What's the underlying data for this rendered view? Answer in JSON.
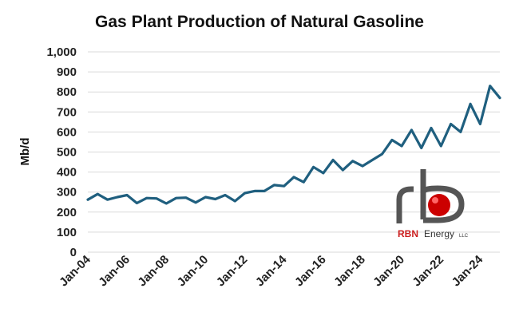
{
  "chart_data": {
    "type": "line",
    "title": "Gas Plant Production of Natural Gasoline",
    "xlabel": "",
    "ylabel": "Mb/d",
    "ylim": [
      0,
      1000
    ],
    "yticks": [
      "0",
      "100",
      "200",
      "300",
      "400",
      "500",
      "600",
      "700",
      "800",
      "900",
      "1,000"
    ],
    "xticks": [
      "Jan-04",
      "Jan-06",
      "Jan-08",
      "Jan-10",
      "Jan-12",
      "Jan-14",
      "Jan-16",
      "Jan-18",
      "Jan-20",
      "Jan-22",
      "Jan-24"
    ],
    "grid": "horizontal",
    "color": "#1f5f7f",
    "x": [
      "Jan-04",
      "Jul-04",
      "Jan-05",
      "Jul-05",
      "Jan-06",
      "Jul-06",
      "Jan-07",
      "Jul-07",
      "Jan-08",
      "Jul-08",
      "Jan-09",
      "Jul-09",
      "Jan-10",
      "Jul-10",
      "Jan-11",
      "Jul-11",
      "Jan-12",
      "Jul-12",
      "Jan-13",
      "Jul-13",
      "Jan-14",
      "Jul-14",
      "Jan-15",
      "Jul-15",
      "Jan-16",
      "Jul-16",
      "Jan-17",
      "Jul-17",
      "Jan-18",
      "Jul-18",
      "Jan-19",
      "Jul-19",
      "Jan-20",
      "Jul-20",
      "Jan-21",
      "Jul-21",
      "Jan-22",
      "Jul-22",
      "Jan-23",
      "Jul-23",
      "Jan-24",
      "Jul-24",
      "Jan-25"
    ],
    "y": [
      262,
      290,
      262,
      275,
      285,
      245,
      270,
      268,
      243,
      270,
      272,
      248,
      275,
      265,
      285,
      255,
      295,
      305,
      305,
      335,
      330,
      375,
      350,
      425,
      395,
      460,
      410,
      455,
      430,
      460,
      490,
      560,
      530,
      610,
      520,
      620,
      530,
      640,
      600,
      740,
      640,
      830,
      770
    ]
  },
  "logo": {
    "brand": "RBN",
    "word": "Energy",
    "suffix": "LLC"
  }
}
